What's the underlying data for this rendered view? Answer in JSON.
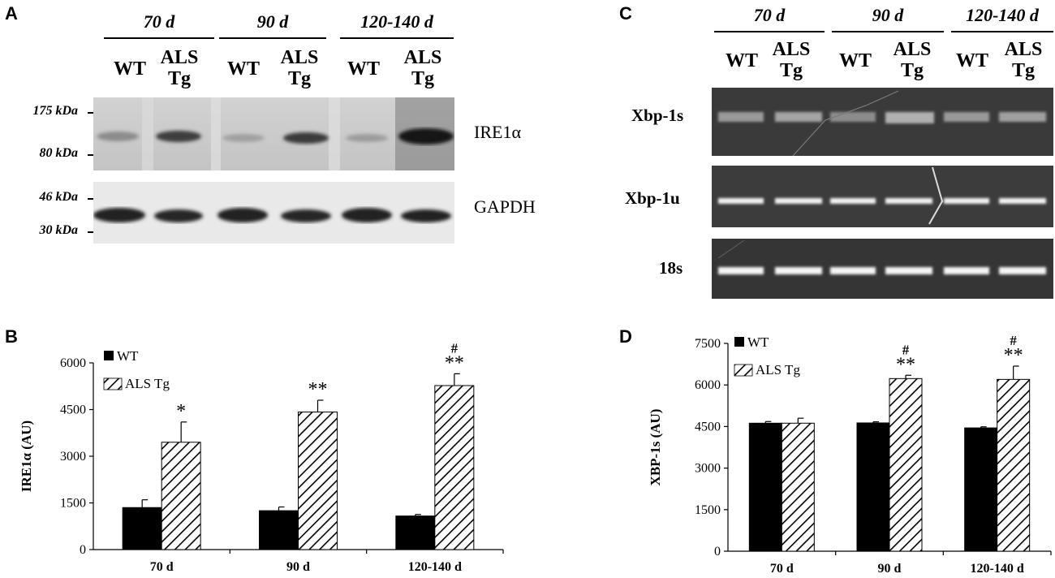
{
  "panels": {
    "a": "A",
    "b": "B",
    "c": "C",
    "d": "D"
  },
  "blot": {
    "groups": [
      "70 d",
      "90 d",
      "120-140 d"
    ],
    "lanes": [
      "WT",
      "ALS\nTg",
      "WT",
      "ALS\nTg",
      "WT",
      "ALS\nTg"
    ],
    "markers": [
      "175 kDa",
      "80 kDa",
      "46 kDa",
      "30 kDa"
    ],
    "bands": [
      "IRE1α",
      "GAPDH"
    ]
  },
  "gel": {
    "groups": [
      "70 d",
      "90 d",
      "120-140 d"
    ],
    "lanes": [
      "WT",
      "ALS\nTg",
      "WT",
      "ALS\nTg",
      "WT",
      "ALS\nTg"
    ],
    "bands": [
      "Xbp-1s",
      "Xbp-1u",
      "18s"
    ]
  },
  "colors": {
    "wt": "#000000",
    "als_hatch": "#000000",
    "background": "#ffffff"
  },
  "chart_data": [
    {
      "type": "bar",
      "panel": "B",
      "categories": [
        "70 d",
        "90 d",
        "120-140 d"
      ],
      "series": [
        {
          "name": "WT",
          "values": [
            1350,
            1250,
            1080
          ],
          "errors": [
            250,
            120,
            50
          ],
          "fill": "solid"
        },
        {
          "name": "ALS Tg",
          "values": [
            3450,
            4420,
            5270
          ],
          "errors": [
            650,
            380,
            380
          ],
          "fill": "hatch"
        }
      ],
      "annotations": [
        [
          "*"
        ],
        [
          "**"
        ],
        [
          "#",
          "**"
        ]
      ],
      "ylabel": "IRE1α (AU)",
      "xlabel": "",
      "ylim": [
        0,
        6000
      ],
      "yticks": [
        0,
        1500,
        3000,
        4500,
        6000
      ],
      "legend_position": "top-left",
      "grid": false
    },
    {
      "type": "bar",
      "panel": "D",
      "categories": [
        "70 d",
        "90 d",
        "120-140 d"
      ],
      "series": [
        {
          "name": "WT",
          "values": [
            4620,
            4630,
            4450
          ],
          "errors": [
            60,
            40,
            40
          ],
          "fill": "solid"
        },
        {
          "name": "ALS Tg",
          "values": [
            4620,
            6230,
            6200
          ],
          "errors": [
            180,
            120,
            480
          ],
          "fill": "hatch"
        }
      ],
      "annotations": [
        [],
        [
          "#",
          "**"
        ],
        [
          "#",
          "**"
        ]
      ],
      "ylabel": "XBP-1s (AU)",
      "xlabel": "",
      "ylim": [
        0,
        7500
      ],
      "yticks": [
        0,
        1500,
        3000,
        4500,
        6000,
        7500
      ],
      "legend_position": "top-left",
      "grid": false
    }
  ]
}
